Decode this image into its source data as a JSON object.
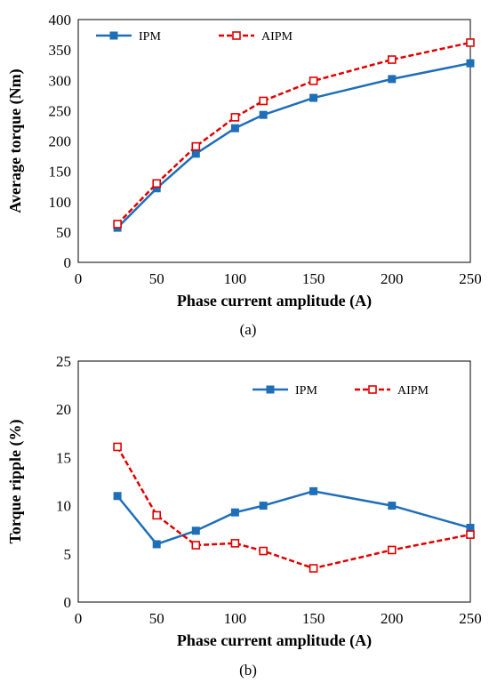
{
  "chart_data": [
    {
      "type": "line",
      "caption": "(a)",
      "xlabel": "Phase current amplitude (A)",
      "ylabel": "Average torque (Nm)",
      "xlim": [
        0,
        250
      ],
      "ylim": [
        0,
        400
      ],
      "xticks": [
        0,
        50,
        100,
        150,
        200,
        250
      ],
      "yticks": [
        0,
        50,
        100,
        150,
        200,
        250,
        300,
        350,
        400
      ],
      "grid": false,
      "legend_position": "top-left",
      "series": [
        {
          "name": "IPM",
          "color": "#1f6eb8",
          "line_style": "solid",
          "marker": "filled-square",
          "x": [
            25,
            50,
            75,
            100,
            118,
            150,
            200,
            250
          ],
          "values": [
            57,
            122,
            179,
            221,
            243,
            271,
            302,
            328
          ]
        },
        {
          "name": "AIPM",
          "color": "#e00000",
          "line_style": "dashed",
          "marker": "open-square",
          "x": [
            25,
            50,
            75,
            100,
            118,
            150,
            200,
            250
          ],
          "values": [
            63,
            130,
            191,
            239,
            266,
            299,
            334,
            362
          ]
        }
      ]
    },
    {
      "type": "line",
      "caption": "(b)",
      "xlabel": "Phase current amplitude (A)",
      "ylabel": "Torque ripple (%)",
      "xlim": [
        0,
        250
      ],
      "ylim": [
        0,
        25
      ],
      "xticks": [
        0,
        50,
        100,
        150,
        200,
        250
      ],
      "yticks": [
        0,
        5,
        10,
        15,
        20,
        25
      ],
      "grid": false,
      "legend_position": "top-right",
      "series": [
        {
          "name": "IPM",
          "color": "#1f6eb8",
          "line_style": "solid",
          "marker": "filled-square",
          "x": [
            25,
            50,
            75,
            100,
            118,
            150,
            200,
            250
          ],
          "values": [
            11.0,
            6.0,
            7.4,
            9.3,
            10.0,
            11.5,
            10.0,
            7.7
          ]
        },
        {
          "name": "AIPM",
          "color": "#e00000",
          "line_style": "dashed",
          "marker": "open-square",
          "x": [
            25,
            50,
            75,
            100,
            118,
            150,
            200,
            250
          ],
          "values": [
            16.1,
            9.0,
            5.9,
            6.1,
            5.3,
            3.5,
            5.4,
            7.0
          ]
        }
      ]
    }
  ]
}
